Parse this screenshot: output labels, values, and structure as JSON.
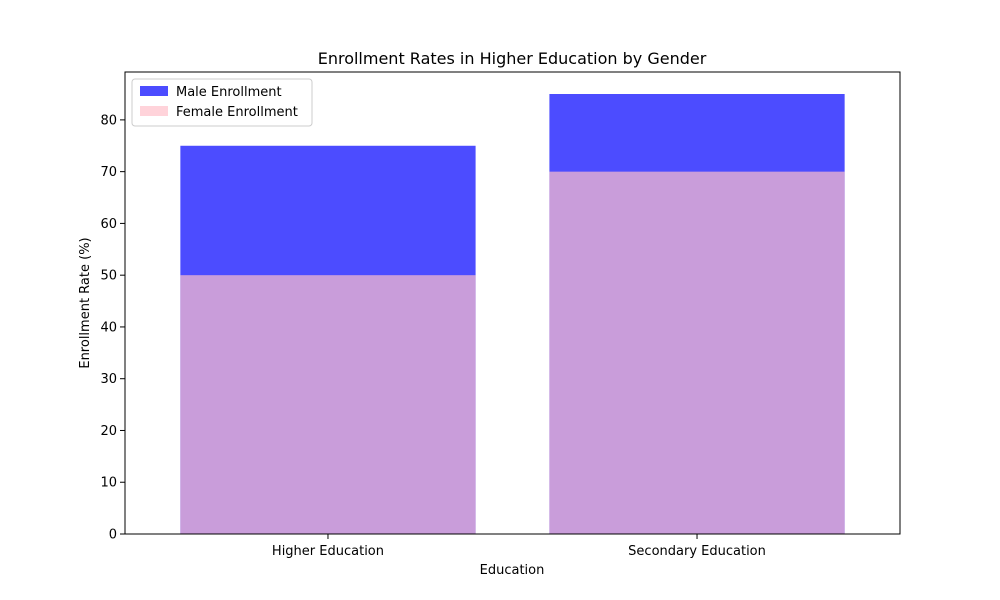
{
  "chart_data": {
    "type": "bar",
    "title": "Enrollment Rates in Higher Education by Gender",
    "xlabel": "Education",
    "ylabel": "Enrollment Rate (%)",
    "categories": [
      "Higher Education",
      "Secondary Education"
    ],
    "series": [
      {
        "name": "Male Enrollment",
        "values": [
          75,
          85
        ],
        "color": "#0000ff",
        "opacity": 0.7
      },
      {
        "name": "Female Enrollment",
        "values": [
          50,
          70
        ],
        "color": "#ffc0cb",
        "opacity": 0.7
      }
    ],
    "ylim": [
      0,
      89.25
    ],
    "yticks": [
      0,
      10,
      20,
      30,
      40,
      50,
      60,
      70,
      80
    ],
    "legend_position": "top-left",
    "grid": false,
    "overlay": true
  }
}
